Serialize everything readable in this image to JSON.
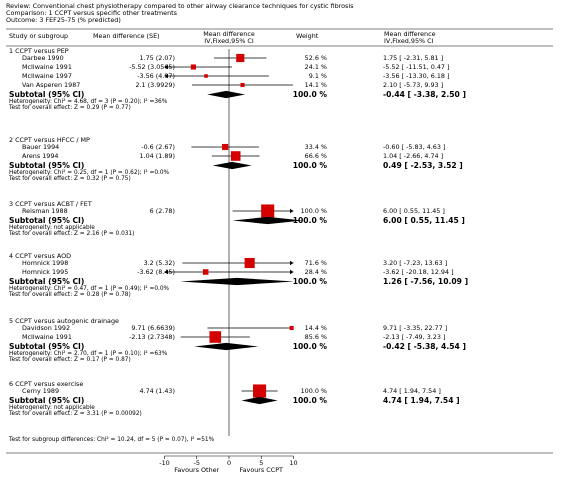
{
  "header": {
    "review": "Review:  Conventional chest physiotherapy compared to other airway clearance techniques for cystic fibrosis",
    "comparison": "Comparison:  1 CCPT versus specific other treatments",
    "outcome": "Outcome:  3 FEF25-75 (% predicted)"
  },
  "columns": {
    "study": "Study or subgroup",
    "md_se": "Mean difference (SE)",
    "md_plot_1": "Mean difference",
    "md_plot_2": "IV,Fixed,95% CI",
    "weight": "Weight",
    "md_ci_1": "Mean difference",
    "md_ci_2": "IV,Fixed,95% CI"
  },
  "colors": {
    "study_box": "#d40000",
    "line": "#000000",
    "diamond": "#000000"
  },
  "chart_data": {
    "type": "forest",
    "x_axis": {
      "min": -10,
      "max": 10,
      "ticks": [
        -10,
        -5,
        0,
        5,
        10
      ],
      "tick_labels": [
        "-10",
        "-5",
        "0",
        "5",
        "10"
      ],
      "left_label": "Favours Other",
      "right_label": "Favours CCPT"
    },
    "subgroups": [
      {
        "title": "1 CCPT versus PEP",
        "studies": [
          {
            "name": "Darbee 1990",
            "md_se": "1.75 (2.07)",
            "md": 1.75,
            "lo": -2.31,
            "hi": 5.81,
            "weight": 52.6,
            "weight_text": "52.6 %",
            "ci_text": "1.75 [ -2.31, 5.81 ]"
          },
          {
            "name": "McIlwaine 1991",
            "md_se": "-5.52 (3.0565)",
            "md": -5.52,
            "lo": -11.51,
            "hi": 0.47,
            "weight": 24.1,
            "weight_text": "24.1 %",
            "ci_text": "-5.52 [ -11.51, 0.47 ]"
          },
          {
            "name": "McIlwaine 1997",
            "md_se": "-3.56 (4.97)",
            "md": -3.56,
            "lo": -13.3,
            "hi": 6.18,
            "weight": 9.1,
            "weight_text": "9.1 %",
            "ci_text": "-3.56 [ -13.30, 6.18 ]"
          },
          {
            "name": "Van Asperen 1987",
            "md_se": "2.1 (3.9929)",
            "md": 2.1,
            "lo": -5.73,
            "hi": 9.93,
            "weight": 14.1,
            "weight_text": "14.1 %",
            "ci_text": "2.10 [ -5.73, 9.93 ]"
          }
        ],
        "subtotal": {
          "label": "Subtotal (95% CI)",
          "weight_text": "100.0 %",
          "md": -0.44,
          "lo": -3.38,
          "hi": 2.5,
          "ci_text": "-0.44 [ -3.38, 2.50 ]"
        },
        "heterogeneity": "Heterogeneity: Chi² = 4.68, df = 3 (P = 0.20); I² =36%",
        "overall": "Test for overall effect: Z = 0.29 (P = 0.77)"
      },
      {
        "title": "2 CCPT versus HFCC / MP",
        "studies": [
          {
            "name": "Bauer 1994",
            "md_se": "-0.6 (2.67)",
            "md": -0.6,
            "lo": -5.83,
            "hi": 4.63,
            "weight": 33.4,
            "weight_text": "33.4 %",
            "ci_text": "-0.60 [ -5.83, 4.63 ]"
          },
          {
            "name": "Arens 1994",
            "md_se": "1.04 (1.89)",
            "md": 1.04,
            "lo": -2.66,
            "hi": 4.74,
            "weight": 66.6,
            "weight_text": "66.6 %",
            "ci_text": "1.04 [ -2.66, 4.74 ]"
          }
        ],
        "subtotal": {
          "label": "Subtotal (95% CI)",
          "weight_text": "100.0 %",
          "md": 0.49,
          "lo": -2.53,
          "hi": 3.52,
          "ci_text": "0.49 [ -2.53, 3.52 ]"
        },
        "heterogeneity": "Heterogeneity: Chi² = 0.25, df = 1 (P = 0.62); I² =0.0%",
        "overall": "Test for overall effect: Z = 0.32 (P = 0.75)"
      },
      {
        "title": "3 CCPT versus ACBT / FET",
        "studies": [
          {
            "name": "Reisman 1988",
            "md_se": "6 (2.78)",
            "md": 6.0,
            "lo": 0.55,
            "hi": 11.45,
            "weight": 100.0,
            "weight_text": "100.0 %",
            "ci_text": "6.00 [ 0.55, 11.45 ]"
          }
        ],
        "subtotal": {
          "label": "Subtotal (95% CI)",
          "weight_text": "100.0 %",
          "md": 6.0,
          "lo": 0.55,
          "hi": 11.45,
          "ci_text": "6.00 [ 0.55, 11.45 ]"
        },
        "heterogeneity": "Heterogeneity: not applicable",
        "overall": "Test for overall effect: Z = 2.16 (P = 0.031)"
      },
      {
        "title": "4 CCPT versus AOD",
        "studies": [
          {
            "name": "Homnick 1998",
            "md_se": "3.2 (5.32)",
            "md": 3.2,
            "lo": -7.23,
            "hi": 13.63,
            "weight": 71.6,
            "weight_text": "71.6 %",
            "ci_text": "3.20 [ -7.23, 13.63 ]"
          },
          {
            "name": "Homnick 1995",
            "md_se": "-3.62 (8.45)",
            "md": -3.62,
            "lo": -20.18,
            "hi": 12.94,
            "weight": 28.4,
            "weight_text": "28.4 %",
            "ci_text": "-3.62 [ -20.18, 12.94 ]"
          }
        ],
        "subtotal": {
          "label": "Subtotal (95% CI)",
          "weight_text": "100.0 %",
          "md": 1.26,
          "lo": -7.56,
          "hi": 10.09,
          "ci_text": "1.26 [ -7.56, 10.09 ]"
        },
        "heterogeneity": "Heterogeneity: Chi² = 0.47, df = 1 (P = 0.49); I² =0.0%",
        "overall": "Test for overall effect: Z = 0.28 (P = 0.78)"
      },
      {
        "title": "5 CCPT versus autogenic drainage",
        "studies": [
          {
            "name": "Davidson 1992",
            "md_se": "9.71 (6.6639)",
            "md": 9.71,
            "lo": -3.35,
            "hi": 22.77,
            "weight": 14.4,
            "weight_text": "14.4 %",
            "ci_text": "9.71 [ -3.35, 22.77 ]"
          },
          {
            "name": "McIlwaine 1991",
            "md_se": "-2.13 (2.7348)",
            "md": -2.13,
            "lo": -7.49,
            "hi": 3.23,
            "weight": 85.6,
            "weight_text": "85.6 %",
            "ci_text": "-2.13 [ -7.49, 3.23 ]"
          }
        ],
        "subtotal": {
          "label": "Subtotal (95% CI)",
          "weight_text": "100.0 %",
          "md": -0.42,
          "lo": -5.38,
          "hi": 4.54,
          "ci_text": "-0.42 [ -5.38, 4.54 ]"
        },
        "heterogeneity": "Heterogeneity: Chi² = 2.70, df = 1 (P = 0.10); I² =63%",
        "overall": "Test for overall effect: Z = 0.17 (P = 0.87)"
      },
      {
        "title": "6 CCPT versus exercise",
        "studies": [
          {
            "name": "Cerny 1989",
            "md_se": "4.74 (1.43)",
            "md": 4.74,
            "lo": 1.94,
            "hi": 7.54,
            "weight": 100.0,
            "weight_text": "100.0 %",
            "ci_text": "4.74 [ 1.94, 7.54 ]"
          }
        ],
        "subtotal": {
          "label": "Subtotal (95% CI)",
          "weight_text": "100.0 %",
          "md": 4.74,
          "lo": 1.94,
          "hi": 7.54,
          "ci_text": "4.74 [ 1.94, 7.54 ]"
        },
        "heterogeneity": "Heterogeneity: not applicable",
        "overall": "Test for overall effect: Z = 3.31 (P = 0.00092)"
      }
    ],
    "subgroup_differences": "Test for subgroup differences: Chi² = 10.24, df = 5 (P = 0.07), I² =51%"
  }
}
